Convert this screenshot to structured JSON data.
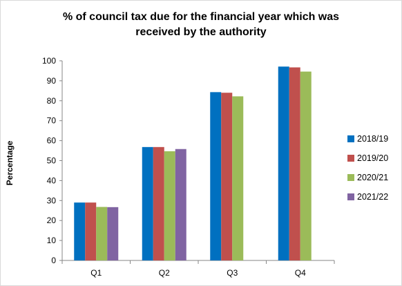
{
  "chart_data": {
    "type": "bar",
    "title": "% of council tax due for the financial year which was received by the authority",
    "title_lines": [
      "% of council tax due for the financial year which was",
      "received by the authority"
    ],
    "xlabel": "",
    "ylabel": "Percentage",
    "categories": [
      "Q1",
      "Q2",
      "Q3",
      "Q4"
    ],
    "ylim": [
      0,
      100
    ],
    "yticks": [
      0,
      10,
      20,
      30,
      40,
      50,
      60,
      70,
      80,
      90,
      100
    ],
    "grid": false,
    "legend_position": "right",
    "series": [
      {
        "name": "2018/19",
        "color": "#0070C0",
        "values": [
          29,
          56.8,
          84.3,
          97.1
        ]
      },
      {
        "name": "2019/20",
        "color": "#C0504D",
        "values": [
          29,
          56.8,
          84,
          96.7
        ]
      },
      {
        "name": "2020/21",
        "color": "#9BBB59",
        "values": [
          26.8,
          54.7,
          82.2,
          94.6
        ]
      },
      {
        "name": "2021/22",
        "color": "#8064A2",
        "values": [
          26.7,
          55.8,
          null,
          null
        ]
      }
    ]
  }
}
